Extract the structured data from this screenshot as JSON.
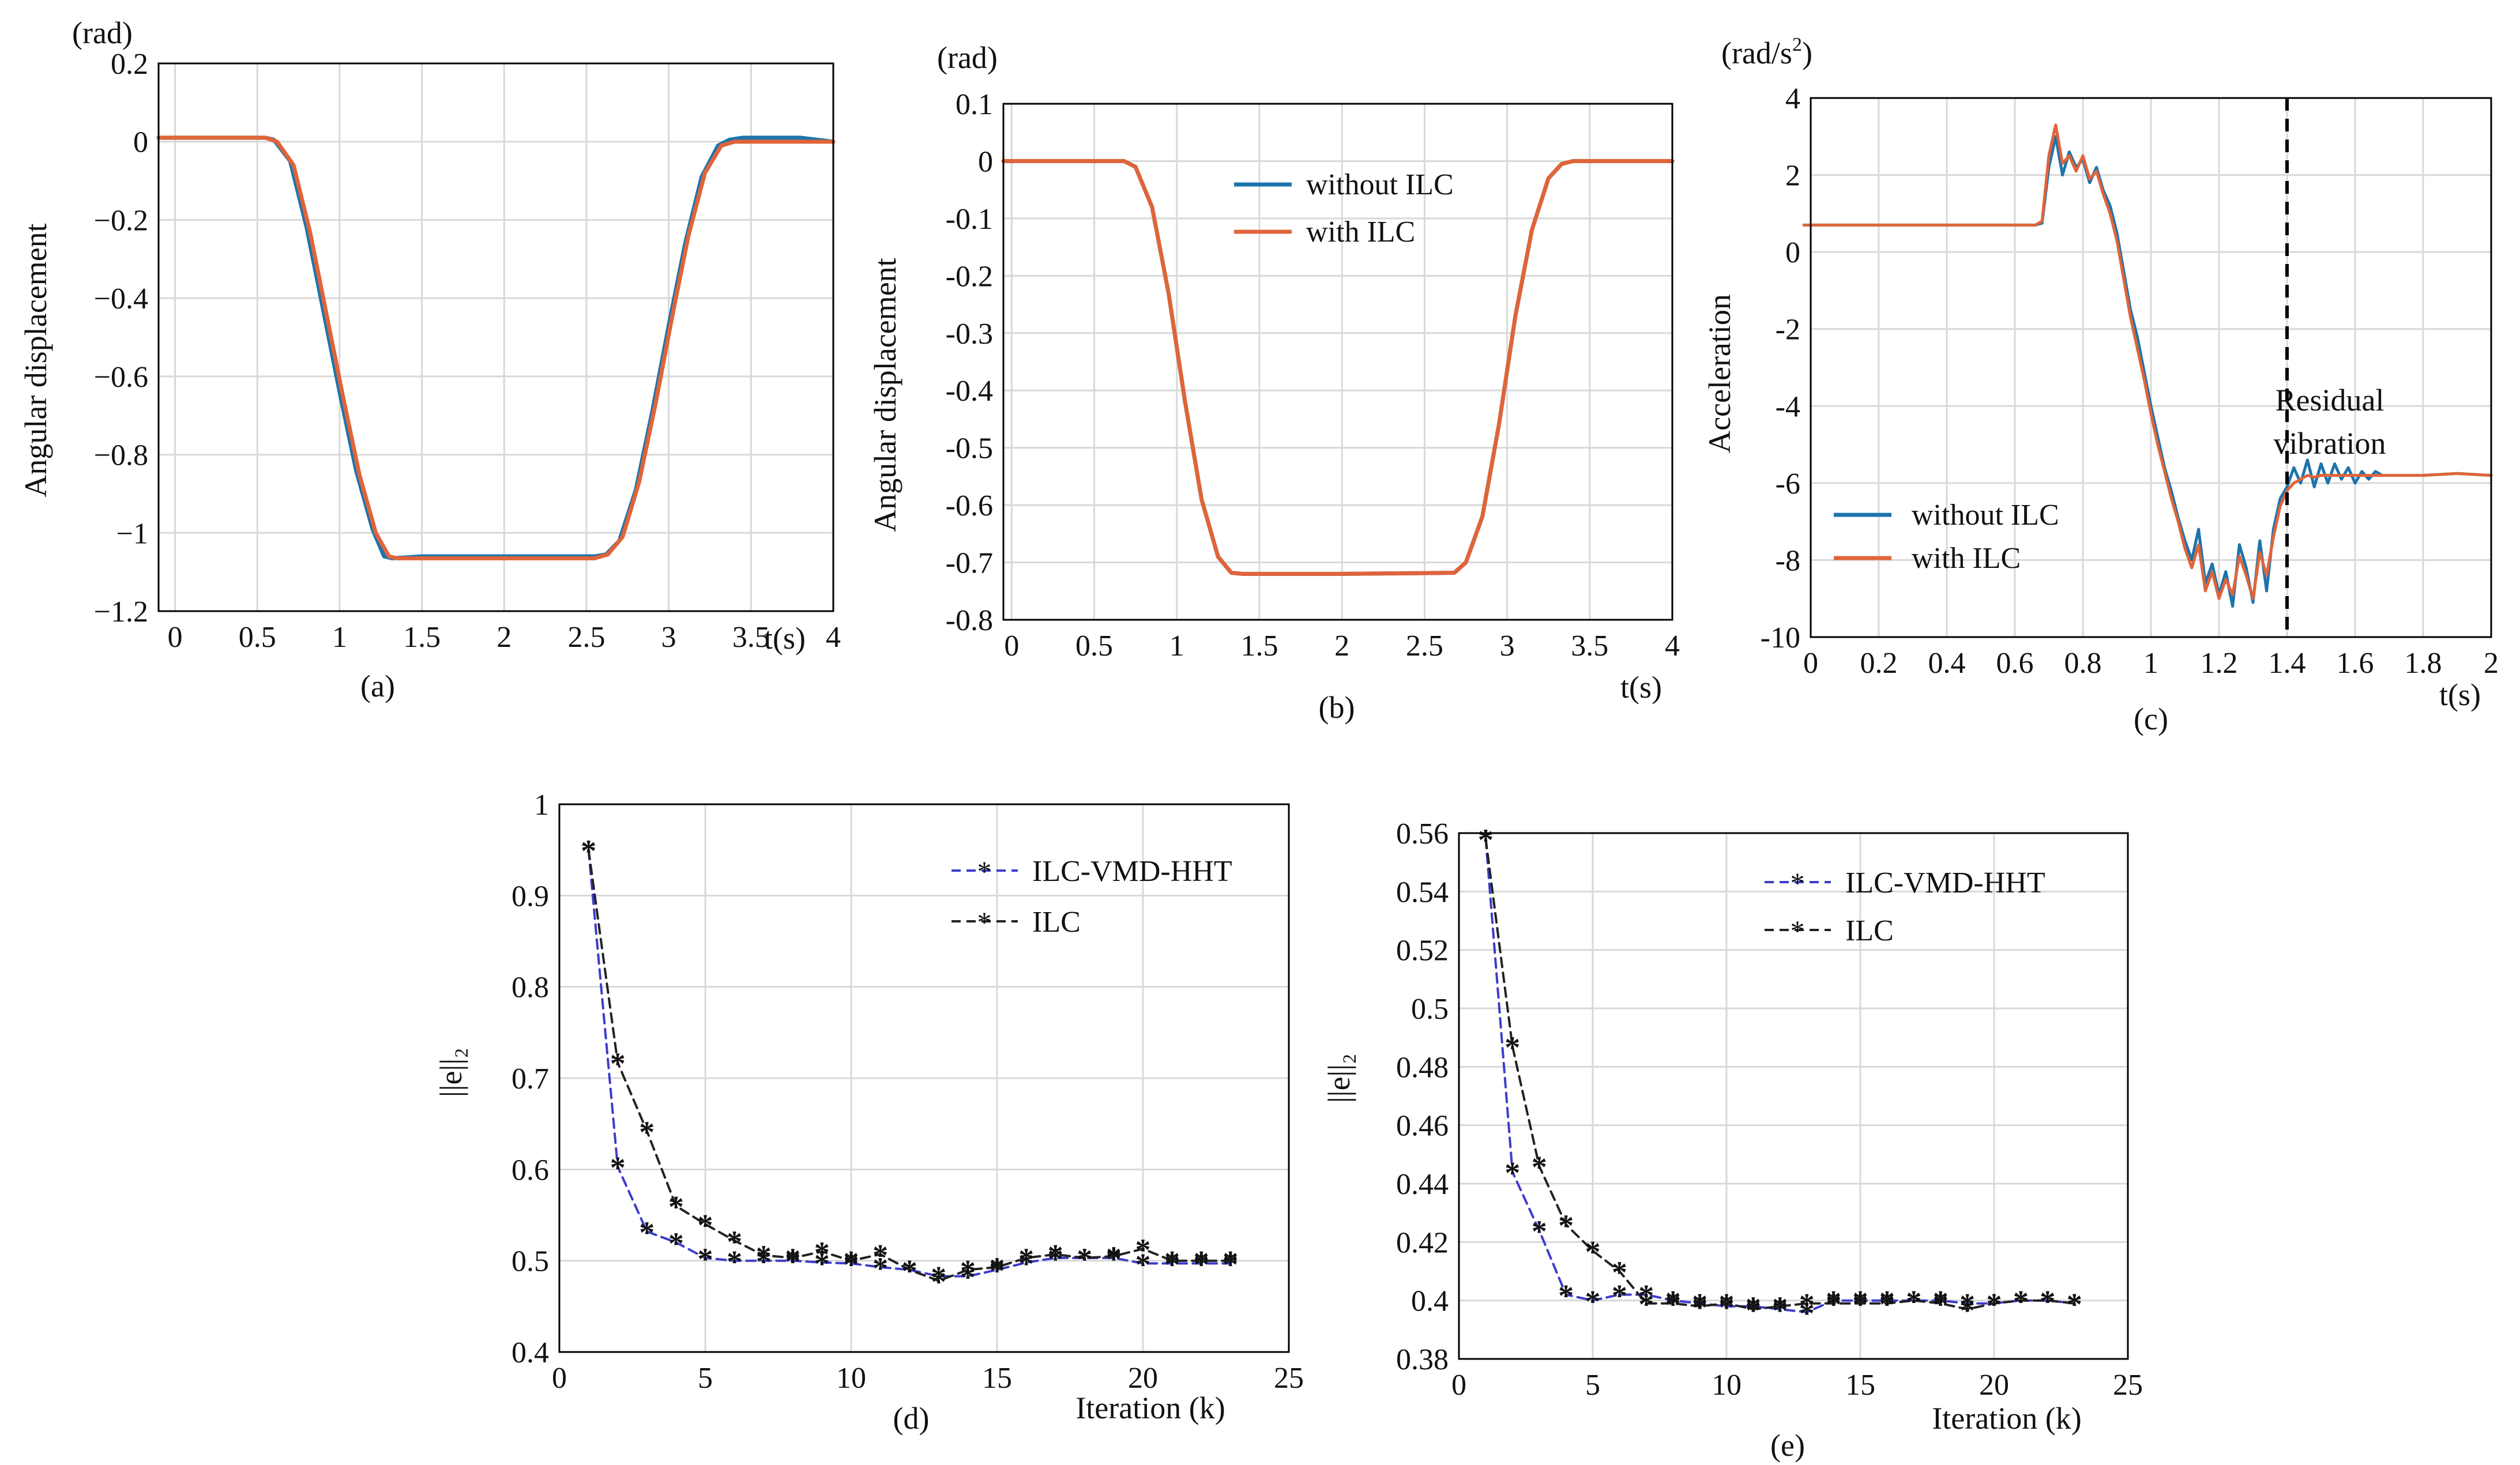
{
  "colors": {
    "blue": "#1c74ad",
    "orange": "#e0643a",
    "navy": "#3c3ccc",
    "black": "#222222",
    "grid": "#d8d8d8"
  },
  "chart_data": [
    {
      "id": "a",
      "type": "line",
      "panel_label": "(a)",
      "unit_label": "(rad)",
      "ylabel": "Angular displacement",
      "xlabel": "t(s)",
      "xlim": [
        -0.1,
        4
      ],
      "ylim": [
        -1.2,
        0.2
      ],
      "xticks": [
        0,
        0.5,
        1,
        1.5,
        2,
        2.5,
        3,
        3.5,
        4
      ],
      "xtick_labels": [
        "0",
        "0.5",
        "1",
        "1.5",
        "2",
        "2.5",
        "3",
        "3.5",
        "4"
      ],
      "yticks": [
        0.2,
        0,
        -0.2,
        -0.4,
        -0.6,
        -0.8,
        -1,
        -1.2
      ],
      "ytick_labels": [
        "0.2",
        "0",
        "−0.2",
        "−0.4",
        "−0.6",
        "−0.8",
        "−1",
        "−1.2"
      ],
      "grid": true,
      "series": [
        {
          "name": "without ILC",
          "color": "blue",
          "width": 7,
          "x": [
            -0.1,
            0.55,
            0.6,
            0.7,
            0.8,
            0.9,
            1.0,
            1.1,
            1.2,
            1.27,
            1.32,
            1.5,
            2.0,
            2.55,
            2.62,
            2.7,
            2.8,
            2.9,
            3.0,
            3.1,
            3.2,
            3.3,
            3.37,
            3.45,
            3.8,
            4.0
          ],
          "y": [
            0.01,
            0.01,
            0.005,
            -0.05,
            -0.22,
            -0.43,
            -0.64,
            -0.84,
            -0.99,
            -1.06,
            -1.065,
            -1.06,
            -1.06,
            -1.06,
            -1.055,
            -1.02,
            -0.89,
            -0.69,
            -0.47,
            -0.26,
            -0.09,
            -0.01,
            0.005,
            0.01,
            0.01,
            0.0
          ]
        },
        {
          "name": "with ILC",
          "color": "orange",
          "width": 7,
          "x": [
            -0.1,
            0.55,
            0.62,
            0.72,
            0.82,
            0.92,
            1.02,
            1.12,
            1.22,
            1.3,
            1.35,
            1.5,
            2.0,
            2.55,
            2.63,
            2.72,
            2.82,
            2.92,
            3.02,
            3.12,
            3.22,
            3.32,
            3.4,
            3.5,
            3.8,
            4.0
          ],
          "y": [
            0.01,
            0.01,
            0.0,
            -0.06,
            -0.23,
            -0.44,
            -0.65,
            -0.85,
            -1.0,
            -1.06,
            -1.065,
            -1.065,
            -1.065,
            -1.065,
            -1.055,
            -1.01,
            -0.87,
            -0.67,
            -0.45,
            -0.24,
            -0.08,
            -0.01,
            0.0,
            0.0,
            0.0,
            0.0
          ]
        }
      ]
    },
    {
      "id": "b",
      "type": "line",
      "panel_label": "(b)",
      "unit_label": "(rad)",
      "ylabel": "Angular displacement",
      "xlabel": "t(s)",
      "xlim": [
        -0.05,
        4
      ],
      "ylim": [
        -0.8,
        0.1
      ],
      "xticks": [
        0,
        0.5,
        1,
        1.5,
        2,
        2.5,
        3,
        3.5,
        4
      ],
      "xtick_labels": [
        "0",
        "0.5",
        "1",
        "1.5",
        "2",
        "2.5",
        "3",
        "3.5",
        "4"
      ],
      "yticks": [
        0.1,
        0,
        -0.1,
        -0.2,
        -0.3,
        -0.4,
        -0.5,
        -0.6,
        -0.7,
        -0.8
      ],
      "ytick_labels": [
        "0.1",
        "0",
        "-0.1",
        "-0.2",
        "-0.3",
        "-0.4",
        "-0.5",
        "-0.6",
        "-0.7",
        "-0.8"
      ],
      "grid": true,
      "legend": {
        "position": "upper-center",
        "entries": [
          "without ILC",
          "with ILC"
        ]
      },
      "series": [
        {
          "name": "without ILC",
          "color": "blue",
          "width": 7,
          "x": [
            -0.05,
            0.68,
            0.75,
            0.85,
            0.95,
            1.05,
            1.15,
            1.25,
            1.33,
            1.4,
            2.0,
            2.68,
            2.75,
            2.85,
            2.95,
            3.05,
            3.15,
            3.25,
            3.33,
            3.4,
            4.0
          ],
          "y": [
            0.0,
            0.0,
            -0.01,
            -0.08,
            -0.23,
            -0.42,
            -0.59,
            -0.69,
            -0.718,
            -0.72,
            -0.72,
            -0.718,
            -0.7,
            -0.62,
            -0.46,
            -0.27,
            -0.12,
            -0.03,
            -0.005,
            0.0,
            0.0
          ]
        },
        {
          "name": "with ILC",
          "color": "orange",
          "width": 7,
          "x": [
            -0.05,
            0.68,
            0.75,
            0.85,
            0.95,
            1.05,
            1.15,
            1.25,
            1.33,
            1.4,
            2.0,
            2.68,
            2.75,
            2.85,
            2.95,
            3.05,
            3.15,
            3.25,
            3.33,
            3.4,
            4.0
          ],
          "y": [
            0.0,
            0.0,
            -0.01,
            -0.08,
            -0.23,
            -0.42,
            -0.59,
            -0.69,
            -0.718,
            -0.72,
            -0.72,
            -0.718,
            -0.7,
            -0.62,
            -0.46,
            -0.27,
            -0.12,
            -0.03,
            -0.005,
            0.0,
            0.0
          ]
        }
      ]
    },
    {
      "id": "c",
      "type": "line",
      "panel_label": "(c)",
      "unit_label_main": "(rad/s",
      "unit_label_sup": "2",
      "unit_label_end": ")",
      "ylabel": "Acceleration",
      "xlabel": "t(s)",
      "xlim": [
        0,
        2
      ],
      "ylim": [
        -10,
        4
      ],
      "xticks": [
        0,
        0.2,
        0.4,
        0.6,
        0.8,
        1,
        1.2,
        1.4,
        1.6,
        1.8,
        2
      ],
      "xtick_labels": [
        "0",
        "0.2",
        "0.4",
        "0.6",
        "0.8",
        "1",
        "1.2",
        "1.4",
        "1.6",
        "1.8",
        "2"
      ],
      "yticks": [
        4,
        2,
        0,
        -2,
        -4,
        -6,
        -8,
        -10
      ],
      "ytick_labels": [
        "4",
        "2",
        "0",
        "-2",
        "-4",
        "-6",
        "-8",
        "-10"
      ],
      "grid": true,
      "legend": {
        "position": "lower-left",
        "entries": [
          "without ILC",
          "with ILC"
        ]
      },
      "annotation": {
        "x": 1.4,
        "line1": "Residual",
        "line2": "vibration"
      },
      "series": [
        {
          "name": "without ILC",
          "color": "blue",
          "width": 5,
          "x": [
            -0.02,
            0.62,
            0.66,
            0.68,
            0.7,
            0.72,
            0.74,
            0.76,
            0.78,
            0.8,
            0.82,
            0.84,
            0.86,
            0.88,
            0.9,
            0.92,
            0.94,
            0.96,
            0.98,
            1.0,
            1.02,
            1.04,
            1.06,
            1.08,
            1.1,
            1.12,
            1.14,
            1.16,
            1.18,
            1.2,
            1.22,
            1.24,
            1.26,
            1.28,
            1.3,
            1.32,
            1.34,
            1.36,
            1.38,
            1.4,
            1.42,
            1.44,
            1.46,
            1.48,
            1.5,
            1.52,
            1.54,
            1.56,
            1.58,
            1.6,
            1.62,
            1.64,
            1.66,
            1.68,
            1.7,
            1.8,
            1.9,
            2.0
          ],
          "y": [
            0.7,
            0.7,
            0.7,
            0.75,
            2.2,
            3.0,
            2.0,
            2.6,
            2.2,
            2.4,
            1.8,
            2.2,
            1.6,
            1.2,
            0.5,
            -0.5,
            -1.5,
            -2.2,
            -3.1,
            -4.0,
            -4.8,
            -5.6,
            -6.2,
            -6.9,
            -7.5,
            -8.0,
            -7.2,
            -8.6,
            -8.1,
            -8.9,
            -8.3,
            -9.2,
            -7.6,
            -8.2,
            -9.1,
            -7.5,
            -8.8,
            -7.2,
            -6.4,
            -6.1,
            -5.6,
            -6.0,
            -5.4,
            -6.1,
            -5.5,
            -6.0,
            -5.5,
            -5.9,
            -5.6,
            -6.0,
            -5.7,
            -5.9,
            -5.7,
            -5.8,
            -5.8,
            -5.8,
            -5.75,
            -5.8
          ]
        },
        {
          "name": "with ILC",
          "color": "orange",
          "width": 5,
          "x": [
            -0.02,
            0.62,
            0.66,
            0.68,
            0.7,
            0.72,
            0.74,
            0.76,
            0.78,
            0.8,
            0.82,
            0.84,
            0.86,
            0.88,
            0.9,
            0.92,
            0.94,
            0.96,
            0.98,
            1.0,
            1.02,
            1.04,
            1.06,
            1.08,
            1.1,
            1.12,
            1.14,
            1.16,
            1.18,
            1.2,
            1.22,
            1.24,
            1.26,
            1.28,
            1.3,
            1.32,
            1.34,
            1.36,
            1.38,
            1.4,
            1.42,
            1.44,
            1.46,
            1.48,
            1.5,
            1.6,
            1.7,
            1.8,
            1.9,
            2.0
          ],
          "y": [
            0.7,
            0.7,
            0.7,
            0.8,
            2.5,
            3.3,
            2.3,
            2.5,
            2.1,
            2.5,
            1.9,
            2.1,
            1.5,
            1.0,
            0.3,
            -0.7,
            -1.7,
            -2.5,
            -3.3,
            -4.2,
            -5.0,
            -5.7,
            -6.4,
            -7.0,
            -7.7,
            -8.2,
            -7.6,
            -8.8,
            -8.3,
            -9.0,
            -8.5,
            -8.9,
            -7.9,
            -8.4,
            -9.0,
            -7.8,
            -8.4,
            -7.4,
            -6.6,
            -6.2,
            -6.0,
            -5.9,
            -5.8,
            -5.85,
            -5.8,
            -5.8,
            -5.8,
            -5.8,
            -5.75,
            -5.8
          ]
        }
      ]
    },
    {
      "id": "d",
      "type": "line",
      "panel_label": "(d)",
      "ylabel": "||e||₂",
      "xlabel": "Iteration (k)",
      "xlim": [
        0,
        25
      ],
      "ylim": [
        0.4,
        1.0
      ],
      "xticks": [
        0,
        5,
        10,
        15,
        20,
        25
      ],
      "xtick_labels": [
        "0",
        "5",
        "10",
        "15",
        "20",
        "25"
      ],
      "yticks": [
        1,
        0.9,
        0.8,
        0.7,
        0.6,
        0.5,
        0.4
      ],
      "ytick_labels": [
        "1",
        "0.9",
        "0.8",
        "0.7",
        "0.6",
        "0.5",
        "0.4"
      ],
      "grid": true,
      "legend": {
        "position": "upper-right",
        "entries": [
          "ILC-VMD-HHT",
          "ILC"
        ]
      },
      "series": [
        {
          "name": "ILC-VMD-HHT",
          "color": "navy",
          "width": 4,
          "dashed": true,
          "marker": "star",
          "x": [
            1,
            2,
            3,
            4,
            5,
            6,
            7,
            8,
            9,
            10,
            11,
            12,
            13,
            14,
            15,
            16,
            17,
            18,
            19,
            20,
            21,
            22,
            23
          ],
          "y": [
            0.95,
            0.603,
            0.532,
            0.52,
            0.503,
            0.5,
            0.5,
            0.5,
            0.498,
            0.497,
            0.493,
            0.49,
            0.483,
            0.483,
            0.49,
            0.498,
            0.503,
            0.503,
            0.503,
            0.497,
            0.497,
            0.497,
            0.497
          ]
        },
        {
          "name": "ILC",
          "color": "black",
          "width": 4,
          "dashed": true,
          "marker": "star",
          "x": [
            1,
            2,
            3,
            4,
            5,
            6,
            7,
            8,
            9,
            10,
            11,
            12,
            13,
            14,
            15,
            16,
            17,
            18,
            19,
            20,
            21,
            22,
            23
          ],
          "y": [
            0.95,
            0.717,
            0.642,
            0.56,
            0.54,
            0.522,
            0.506,
            0.503,
            0.51,
            0.5,
            0.507,
            0.49,
            0.478,
            0.49,
            0.493,
            0.503,
            0.507,
            0.503,
            0.505,
            0.513,
            0.5,
            0.5,
            0.5
          ]
        }
      ]
    },
    {
      "id": "e",
      "type": "line",
      "panel_label": "(e)",
      "ylabel": "||e||₂",
      "xlabel": "Iteration (k)",
      "xlim": [
        0,
        25
      ],
      "ylim": [
        0.38,
        0.56
      ],
      "xticks": [
        0,
        5,
        10,
        15,
        20,
        25
      ],
      "xtick_labels": [
        "0",
        "5",
        "10",
        "15",
        "20",
        "25"
      ],
      "yticks": [
        0.56,
        0.54,
        0.52,
        0.5,
        0.48,
        0.46,
        0.44,
        0.42,
        0.4,
        0.38
      ],
      "ytick_labels": [
        "0.56",
        "0.54",
        "0.52",
        "0.5",
        "0.48",
        "0.46",
        "0.44",
        "0.42",
        "0.4",
        "0.38"
      ],
      "grid": true,
      "legend": {
        "position": "upper-right",
        "entries": [
          "ILC-VMD-HHT",
          "ILC"
        ]
      },
      "series": [
        {
          "name": "ILC-VMD-HHT",
          "color": "navy",
          "width": 4,
          "dashed": true,
          "marker": "star",
          "x": [
            1,
            2,
            3,
            4,
            5,
            6,
            7,
            8,
            9,
            10,
            11,
            12,
            13,
            14,
            15,
            16,
            17,
            18,
            19,
            20,
            21,
            22,
            23
          ],
          "y": [
            0.558,
            0.444,
            0.424,
            0.402,
            0.4,
            0.402,
            0.402,
            0.4,
            0.399,
            0.398,
            0.398,
            0.397,
            0.396,
            0.4,
            0.4,
            0.4,
            0.4,
            0.4,
            0.399,
            0.399,
            0.4,
            0.4,
            0.399
          ]
        },
        {
          "name": "ILC",
          "color": "black",
          "width": 4,
          "dashed": true,
          "marker": "star",
          "x": [
            1,
            2,
            3,
            4,
            5,
            6,
            7,
            8,
            9,
            10,
            11,
            12,
            13,
            14,
            15,
            16,
            17,
            18,
            19,
            20,
            21,
            22,
            23
          ],
          "y": [
            0.558,
            0.487,
            0.446,
            0.426,
            0.417,
            0.41,
            0.399,
            0.399,
            0.398,
            0.399,
            0.397,
            0.398,
            0.399,
            0.399,
            0.399,
            0.399,
            0.4,
            0.399,
            0.397,
            0.399,
            0.4,
            0.4,
            0.399
          ]
        }
      ]
    }
  ]
}
